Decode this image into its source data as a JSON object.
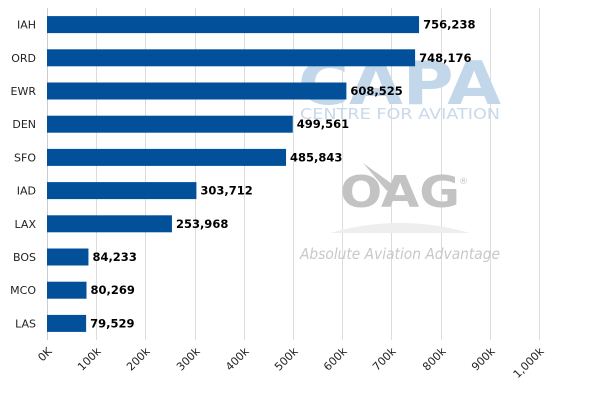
{
  "chart_data": {
    "type": "bar",
    "orientation": "horizontal",
    "categories": [
      "IAH",
      "ORD",
      "EWR",
      "DEN",
      "SFO",
      "IAD",
      "LAX",
      "BOS",
      "MCO",
      "LAS"
    ],
    "values": [
      756238,
      748176,
      608525,
      499561,
      485843,
      303712,
      253968,
      84233,
      80269,
      79529
    ],
    "data_labels": [
      "756,238",
      "748,176",
      "608,525",
      "499,561",
      "485,843",
      "303,712",
      "253,968",
      "84,233",
      "80,269",
      "79,529"
    ],
    "xlim": [
      0,
      1000000
    ],
    "x_ticks": [
      0,
      100000,
      200000,
      300000,
      400000,
      500000,
      600000,
      700000,
      800000,
      900000,
      1000000
    ],
    "x_tick_labels": [
      "0K",
      "100k",
      "200k",
      "300k",
      "400k",
      "500k",
      "600k",
      "700k",
      "800k",
      "900k",
      "1,000k"
    ],
    "grid": "vertical",
    "bar_color": "#03509a",
    "title": "",
    "xlabel": "",
    "ylabel": ""
  },
  "watermarks": {
    "capa_logo": "CAPA",
    "capa_subtitle": "CENTRE FOR AVIATION",
    "oag_logo": "OAG",
    "oag_registered": "®",
    "oag_tagline": "Absolute Aviation Advantage"
  }
}
